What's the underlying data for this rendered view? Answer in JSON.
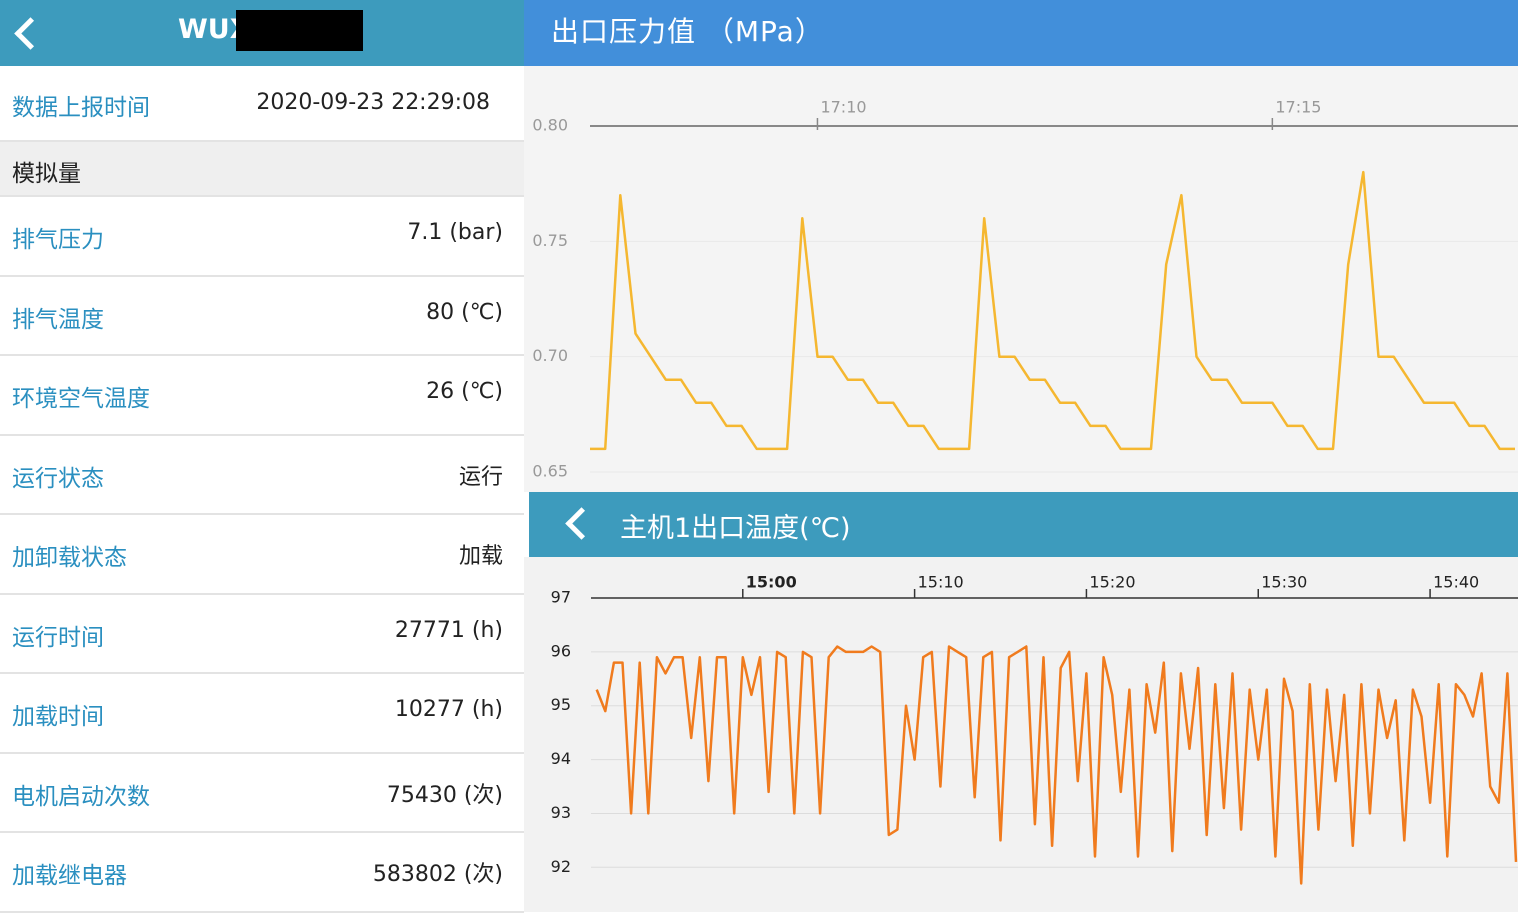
{
  "header": {
    "title": "WUX"
  },
  "report_time": {
    "label": "数据上报时间",
    "value": "2020-09-23 22:29:08"
  },
  "section": "模拟量",
  "rows": [
    [
      "排气压力",
      "7.1 (bar)"
    ],
    [
      "排气温度",
      "80 (℃)"
    ],
    [
      "环境空气温度",
      "26 (℃)"
    ],
    [
      "运行状态",
      "运行"
    ],
    [
      "加卸载状态",
      "加载"
    ],
    [
      "运行时间",
      "27771 (h)"
    ],
    [
      "加载时间",
      "10277 (h)"
    ],
    [
      "电机启动次数",
      "75430 (次)"
    ],
    [
      "加载继电器",
      "583802 (次)"
    ]
  ],
  "chart_data": [
    {
      "type": "line",
      "title": "出口压力值 （MPa）",
      "color": "#f5b730",
      "x": [
        61650,
        61660,
        61670,
        61680,
        61690,
        61700,
        61710,
        61720,
        61730,
        61740,
        61750,
        61760,
        61770,
        61780,
        61790,
        61800,
        61810,
        61820,
        61830,
        61840,
        61850,
        61860,
        61870,
        61880,
        61890,
        61900,
        61910,
        61920,
        61930,
        61940,
        61950,
        61960,
        61970,
        61980,
        61990,
        62000,
        62010,
        62020,
        62030,
        62040,
        62050,
        62060,
        62070,
        62080,
        62090,
        62100,
        62110,
        62120,
        62130,
        62140,
        62150,
        62160,
        62170,
        62180,
        62190,
        62200,
        62210,
        62220,
        62230,
        62240,
        62250,
        62260
      ],
      "values": [
        0.66,
        0.66,
        0.77,
        0.71,
        0.7,
        0.69,
        0.69,
        0.68,
        0.68,
        0.67,
        0.67,
        0.66,
        0.66,
        0.66,
        0.76,
        0.7,
        0.7,
        0.69,
        0.69,
        0.68,
        0.68,
        0.67,
        0.67,
        0.66,
        0.66,
        0.66,
        0.76,
        0.7,
        0.7,
        0.69,
        0.69,
        0.68,
        0.68,
        0.67,
        0.67,
        0.66,
        0.66,
        0.66,
        0.74,
        0.77,
        0.7,
        0.69,
        0.69,
        0.68,
        0.68,
        0.68,
        0.67,
        0.67,
        0.66,
        0.66,
        0.74,
        0.78,
        0.7,
        0.7,
        0.69,
        0.68,
        0.68,
        0.68,
        0.67,
        0.67,
        0.66,
        0.66
      ],
      "xlim": [
        61650,
        62262
      ],
      "xticks": [
        {
          "value": 61800,
          "label": "17:10"
        },
        {
          "value": 62100,
          "label": "17:15"
        }
      ],
      "ylim": [
        0.65,
        0.8
      ],
      "yticks": [
        {
          "value": 0.8,
          "label": "0.80"
        },
        0.75,
        {
          "value": 0.7,
          "label": "0.70"
        },
        0.65
      ]
    },
    {
      "type": "line",
      "title": "主机1出口温度(℃)",
      "color": "#f07b1e",
      "x": [
        53490,
        53520,
        53550,
        53580,
        53610,
        53640,
        53670,
        53700,
        53730,
        53760,
        53790,
        53820,
        53850,
        53880,
        53910,
        53940,
        53970,
        54000,
        54030,
        54060,
        54090,
        54120,
        54150,
        54180,
        54210,
        54240,
        54270,
        54300,
        54330,
        54360,
        54390,
        54420,
        54450,
        54480,
        54510,
        54540,
        54570,
        54600,
        54630,
        54660,
        54690,
        54720,
        54750,
        54780,
        54810,
        54840,
        54870,
        54900,
        54930,
        54960,
        54990,
        55020,
        55050,
        55080,
        55110,
        55140,
        55170,
        55200,
        55230,
        55260,
        55290,
        55320,
        55350,
        55380,
        55410,
        55440,
        55470,
        55500,
        55530,
        55560,
        55590,
        55620,
        55650,
        55680,
        55710,
        55740,
        55770,
        55800,
        55830,
        55860,
        55890,
        55920,
        55950,
        55980,
        56010,
        56040,
        56070,
        56100,
        56130,
        56160,
        56190,
        56220,
        56250,
        56280,
        56310,
        56340,
        56370,
        56400,
        56430,
        56460,
        56490,
        56520,
        56550,
        56580,
        56610,
        56640,
        56670,
        56700
      ],
      "values": [
        95.3,
        94.9,
        95.8,
        95.8,
        93.0,
        95.8,
        93.0,
        95.9,
        95.6,
        95.9,
        95.9,
        94.4,
        95.9,
        93.6,
        95.9,
        95.9,
        93.0,
        95.9,
        95.2,
        95.9,
        93.4,
        96.0,
        95.9,
        93.0,
        96.0,
        95.9,
        93.0,
        95.9,
        96.1,
        96.0,
        96.0,
        96.0,
        96.1,
        96.0,
        92.6,
        92.7,
        95.0,
        94.0,
        95.9,
        96.0,
        93.5,
        96.1,
        96.0,
        95.9,
        93.3,
        95.9,
        96.0,
        92.5,
        95.9,
        96.0,
        96.1,
        92.8,
        95.9,
        92.4,
        95.7,
        96.0,
        93.6,
        95.6,
        92.2,
        95.9,
        95.2,
        93.4,
        95.3,
        92.2,
        95.4,
        94.5,
        95.8,
        92.3,
        95.6,
        94.2,
        95.7,
        92.6,
        95.4,
        93.1,
        95.6,
        92.7,
        95.3,
        94.0,
        95.3,
        92.2,
        95.5,
        94.9,
        91.7,
        95.4,
        92.7,
        95.3,
        93.6,
        95.2,
        92.4,
        95.4,
        93.0,
        95.3,
        94.4,
        95.1,
        92.5,
        95.3,
        94.8,
        93.2,
        95.4,
        92.2,
        95.4,
        95.2,
        94.8,
        95.6,
        93.5,
        93.2,
        95.6,
        92.1
      ],
      "xlim": [
        53470,
        56707
      ],
      "xticks": [
        {
          "value": 54000,
          "label": "15:00"
        },
        {
          "value": 54600,
          "label": "15:10"
        },
        {
          "value": 55200,
          "label": "15:20"
        },
        {
          "value": 55800,
          "label": "15:30"
        },
        {
          "value": 56400,
          "label": "15:40"
        }
      ],
      "ylim": [
        91.3,
        97
      ],
      "yticks": [
        97,
        96,
        95,
        94,
        93,
        92
      ]
    }
  ]
}
